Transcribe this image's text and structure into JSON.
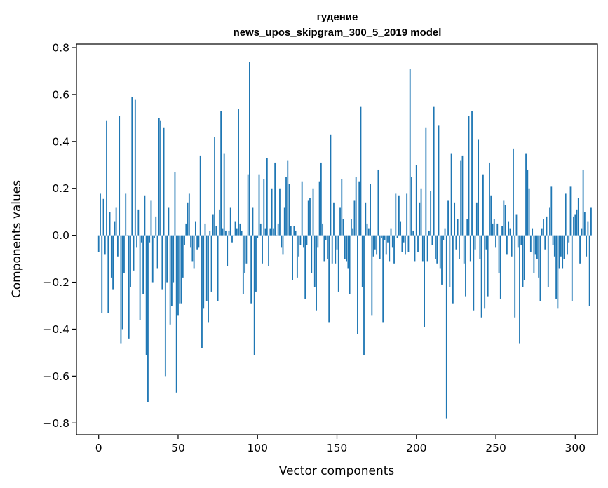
{
  "chart_data": {
    "type": "bar",
    "title_line1": "гудение",
    "title_line2": "news_upos_skipgram_300_5_2019 model",
    "xlabel": "Vector components",
    "ylabel": "Components values",
    "xlim": [
      -14,
      314
    ],
    "ylim": [
      -0.85,
      0.815
    ],
    "x_ticks": [
      0,
      50,
      100,
      150,
      200,
      250,
      300
    ],
    "x_tick_labels": [
      "0",
      "50",
      "100",
      "150",
      "200",
      "250",
      "300"
    ],
    "y_ticks": [
      -0.8,
      -0.6,
      -0.4,
      -0.2,
      0.0,
      0.2,
      0.4,
      0.6,
      0.8
    ],
    "y_tick_labels": [
      "−0.8",
      "−0.6",
      "−0.4",
      "−0.2",
      "0.0",
      "0.2",
      "0.4",
      "0.6",
      "0.8"
    ],
    "bar_color": "#1f77b4",
    "grid": false,
    "legend": "none",
    "x_start": 0,
    "values": [
      -0.07,
      0.18,
      -0.33,
      0.155,
      -0.08,
      0.49,
      -0.33,
      0.1,
      -0.18,
      -0.23,
      0.06,
      0.12,
      -0.09,
      0.51,
      -0.46,
      -0.4,
      -0.16,
      0.18,
      0.0,
      -0.44,
      -0.22,
      0.59,
      -0.15,
      0.58,
      -0.05,
      0.11,
      -0.36,
      -0.03,
      -0.25,
      0.17,
      -0.51,
      -0.71,
      -0.03,
      0.15,
      -0.2,
      -0.01,
      0.08,
      -0.14,
      0.5,
      0.49,
      -0.23,
      0.46,
      -0.6,
      -0.2,
      0.12,
      -0.38,
      -0.3,
      -0.2,
      0.27,
      -0.67,
      -0.34,
      -0.29,
      -0.29,
      -0.18,
      -0.04,
      0.05,
      0.14,
      0.18,
      -0.05,
      -0.11,
      -0.14,
      0.06,
      -0.06,
      -0.05,
      0.34,
      -0.48,
      -0.31,
      0.05,
      -0.28,
      -0.37,
      0.02,
      -0.24,
      0.09,
      0.42,
      0.04,
      -0.28,
      0.11,
      0.53,
      0.03,
      0.35,
      0.02,
      -0.13,
      0.02,
      0.12,
      -0.03,
      0.0,
      0.06,
      0.03,
      0.54,
      0.05,
      0.02,
      -0.25,
      -0.16,
      -0.12,
      0.26,
      0.74,
      -0.29,
      0.12,
      -0.51,
      -0.24,
      -0.01,
      0.26,
      0.05,
      -0.12,
      0.24,
      0.03,
      0.33,
      -0.13,
      0.03,
      0.2,
      0.03,
      0.31,
      0.0,
      0.05,
      0.2,
      -0.05,
      -0.08,
      0.12,
      0.25,
      0.32,
      0.22,
      0.04,
      -0.19,
      0.04,
      0.02,
      -0.18,
      -0.09,
      -0.04,
      0.23,
      -0.05,
      -0.27,
      -0.04,
      0.15,
      0.16,
      -0.16,
      0.2,
      -0.22,
      -0.32,
      -0.05,
      0.23,
      0.31,
      0.05,
      -0.11,
      -0.02,
      -0.1,
      -0.37,
      0.43,
      -0.12,
      0.14,
      -0.12,
      -0.06,
      -0.24,
      0.12,
      0.24,
      0.07,
      -0.1,
      -0.11,
      -0.14,
      -0.25,
      0.07,
      0.03,
      0.15,
      0.25,
      -0.42,
      0.23,
      0.55,
      -0.22,
      -0.51,
      0.14,
      0.05,
      0.03,
      0.22,
      -0.34,
      -0.09,
      -0.06,
      -0.08,
      0.28,
      -0.1,
      -0.01,
      -0.37,
      -0.02,
      -0.08,
      -0.03,
      -0.11,
      0.03,
      -0.05,
      -0.12,
      0.18,
      -0.01,
      0.17,
      0.06,
      -0.07,
      -0.03,
      -0.08,
      0.18,
      -0.07,
      0.71,
      0.25,
      0.02,
      -0.11,
      0.3,
      -0.07,
      0.14,
      0.2,
      -0.11,
      -0.39,
      0.46,
      -0.11,
      0.02,
      0.19,
      -0.04,
      0.55,
      -0.1,
      -0.12,
      0.47,
      -0.14,
      -0.21,
      -0.02,
      0.03,
      -0.78,
      0.15,
      -0.22,
      0.35,
      -0.29,
      0.14,
      -0.06,
      0.07,
      -0.1,
      0.32,
      0.34,
      -0.12,
      -0.26,
      0.07,
      0.51,
      -0.11,
      0.53,
      -0.32,
      -0.06,
      0.14,
      0.41,
      -0.1,
      -0.35,
      0.26,
      -0.31,
      -0.06,
      -0.26,
      0.31,
      0.17,
      0.05,
      0.07,
      -0.05,
      0.05,
      -0.16,
      -0.27,
      0.04,
      0.15,
      0.13,
      -0.08,
      0.06,
      0.03,
      -0.09,
      0.37,
      -0.35,
      0.09,
      -0.05,
      -0.46,
      -0.04,
      -0.22,
      -0.19,
      0.35,
      0.28,
      0.2,
      -0.07,
      0.03,
      -0.16,
      -0.08,
      -0.1,
      -0.18,
      -0.28,
      0.03,
      0.07,
      -0.06,
      0.08,
      -0.22,
      0.12,
      0.21,
      -0.04,
      -0.09,
      -0.27,
      -0.31,
      -0.14,
      -0.09,
      -0.14,
      -0.1,
      0.18,
      -0.08,
      -0.03,
      0.21,
      -0.28,
      0.08,
      0.09,
      0.11,
      0.16,
      -0.12,
      0.03,
      0.28,
      0.1,
      -0.09,
      0.06,
      -0.3,
      0.12
    ]
  }
}
